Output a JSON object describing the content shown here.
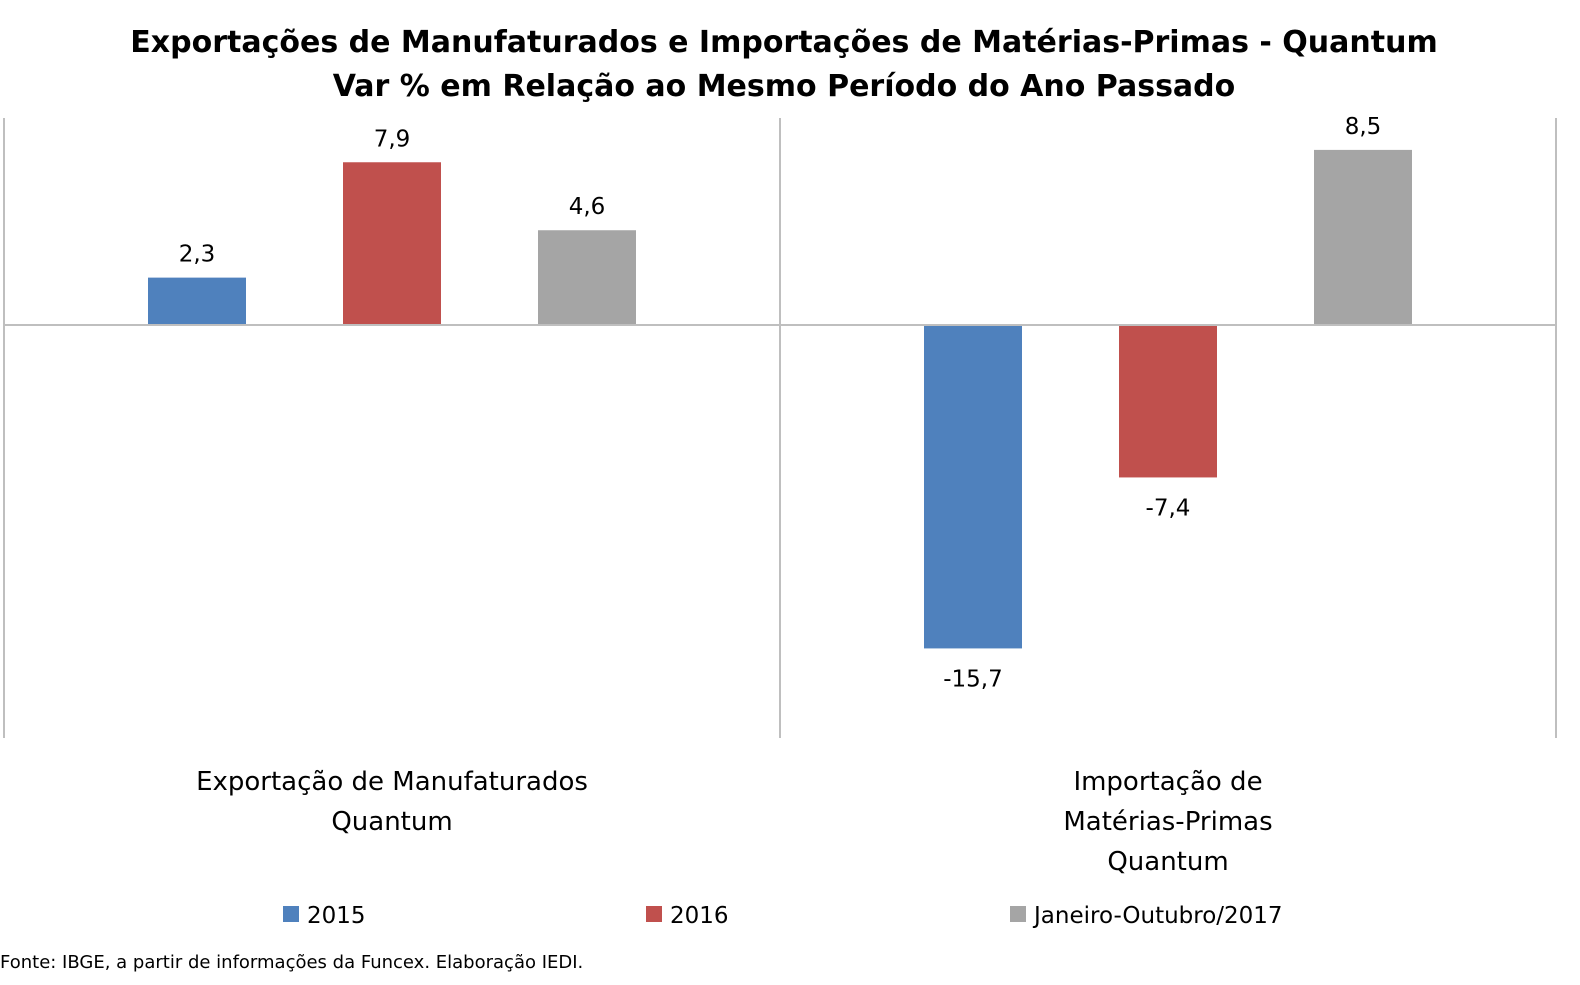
{
  "chart_data": {
    "type": "bar",
    "title_lines": [
      "Exportações de Manufaturados e Importações de Matérias-Primas - Quantum",
      "Var % em Relação ao Mesmo Período do Ano Passado"
    ],
    "categories": [
      [
        "Exportação de Manufaturados",
        "Quantum"
      ],
      [
        "Importação de",
        "Matérias-Primas",
        "Quantum"
      ]
    ],
    "series": [
      {
        "name": "2015",
        "color": "#4f81bd",
        "values": [
          2.3,
          -15.7
        ],
        "labels": [
          "2,3",
          "-15,7"
        ]
      },
      {
        "name": "2016",
        "color": "#c0504d",
        "values": [
          7.9,
          -7.4
        ],
        "labels": [
          "7,9",
          "-7,4"
        ]
      },
      {
        "name": "Janeiro-Outubro/2017",
        "color": "#a5a5a5",
        "values": [
          4.6,
          8.5
        ],
        "labels": [
          "4,6",
          "8,5"
        ]
      }
    ],
    "ylim": [
      -20,
      10
    ],
    "grid": false,
    "legend": "bottom",
    "source": "Fonte: IBGE, a partir de  informações da Funcex. Elaboração IEDI."
  }
}
